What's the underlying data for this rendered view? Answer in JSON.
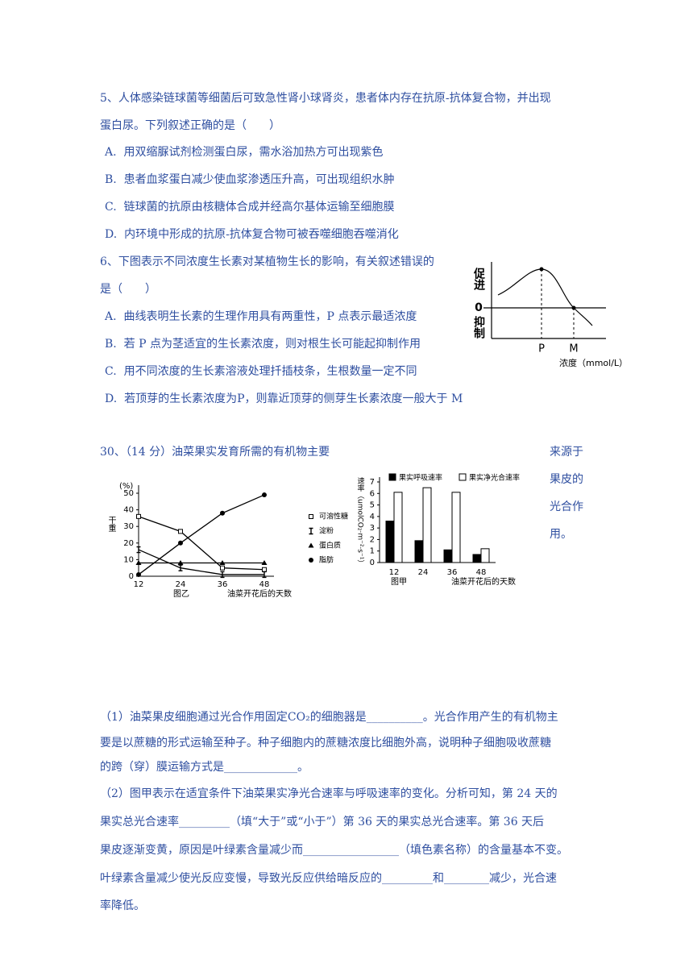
{
  "q5": {
    "lines": [
      "5、人体感染链球菌等细菌后可致急性肾小球肾炎，患者体内存在抗原-抗体复合物，并出现",
      "蛋白尿。下列叙述正确的是（　　）"
    ],
    "options": [
      "A.  用双缩脲试剂检测蛋白尿，需水浴加热方可出现紫色",
      "B.  患者血浆蛋白减少使血浆渗透压升高，可出现组织水肿",
      "C.  链球菌的抗原由核糖体合成并经高尔基体运输至细胞膜",
      "D.  内环境中形成的抗原-抗体复合物可被吞噬细胞吞噬消化"
    ]
  },
  "q6": {
    "lines": [
      "6、下图表示不同浓度生长素对某植物生长的影响，有关叙述错误的",
      "是（　　）"
    ],
    "options": [
      "A.  曲线表明生长素的生理作用具有两重性，P 点表示最适浓度",
      "B.  若 P 点为茎适宜的生长素浓度，则对根生长可能起抑制作用",
      "C.  用不同浓度的生长素溶液处理扦插枝条，生根数量一定不同",
      "D.  若顶芽的生长素浓度为P，则靠近顶芽的侧芽生长素浓度一般大于 M"
    ],
    "figure": {
      "up": "促进",
      "zero": "0",
      "down": "抑制",
      "p": "P",
      "m": "M",
      "x_label": "浓度（mmol/L）"
    }
  },
  "q30": {
    "stem": "30、（14 分）油菜果实发育所需的有机物主要",
    "side": [
      "来源于",
      "果皮的",
      "光合作",
      "用。"
    ],
    "part1": [
      "（1）油菜果皮细胞通过光合作用固定CO₂的细胞器是__________。光合作用产生的有机物主",
      "要是以蔗糖的形式运输至种子。种子细胞内的蔗糖浓度比细胞外高，说明种子细胞吸收蔗糖",
      "的跨（穿）膜运输方式是_____________。"
    ],
    "part2": [
      "（2）图甲表示在适宜条件下油菜果实净光合速率与呼吸速率的变化。分析可知，第 24 天的",
      "果实总光合速率_________（填“大于”或“小于”）第 36 天的果实总光合速率。第 36 天后",
      "果皮逐渐变黄，原因是叶绿素含量减少而_________________（填色素名称）的含量基本不变。",
      "叶绿素含量减少使光反应变慢，导致光反应供给暗反应的_________和________减少，光合速",
      "率降低。"
    ]
  },
  "charts": {
    "yi": {
      "type": "line",
      "y_label": "干重",
      "y_unit": "(%)",
      "caption": "图乙",
      "x_label": "油菜开花后的天数",
      "x": [
        12,
        24,
        36,
        48
      ],
      "xlim": [
        12,
        48
      ],
      "ylim": [
        0,
        50
      ],
      "yticks": [
        0,
        10,
        20,
        30,
        40,
        50
      ],
      "series": [
        {
          "name": "可溶性糖",
          "marker": "square",
          "color": "#000000",
          "values": [
            36,
            27,
            5,
            4
          ]
        },
        {
          "name": "淀粉",
          "marker": "ibeam",
          "color": "#000000",
          "values": [
            16,
            5,
            1,
            1
          ]
        },
        {
          "name": "蛋白质",
          "marker": "triangle",
          "color": "#000000",
          "values": [
            8,
            8,
            8,
            8
          ]
        },
        {
          "name": "脂肪",
          "marker": "circle",
          "color": "#000000",
          "values": [
            1,
            20,
            38,
            49
          ]
        }
      ]
    },
    "jia": {
      "type": "bar",
      "y_label": "速率（umolCO₂·m⁻²·s⁻¹）",
      "caption": "图甲",
      "x_label": "油菜开花后的天数",
      "categories": [
        "12",
        "24",
        "36",
        "48"
      ],
      "ylim": [
        0,
        7
      ],
      "yticks": [
        0,
        1,
        2,
        3,
        4,
        5,
        6,
        7
      ],
      "series": [
        {
          "name": "果实呼吸速率",
          "color": "#000000",
          "values": [
            3.6,
            1.9,
            1.1,
            0.7
          ]
        },
        {
          "name": "果实净光合速率",
          "color": "#ffffff",
          "values": [
            6.1,
            6.5,
            6.1,
            1.2
          ]
        }
      ]
    }
  }
}
